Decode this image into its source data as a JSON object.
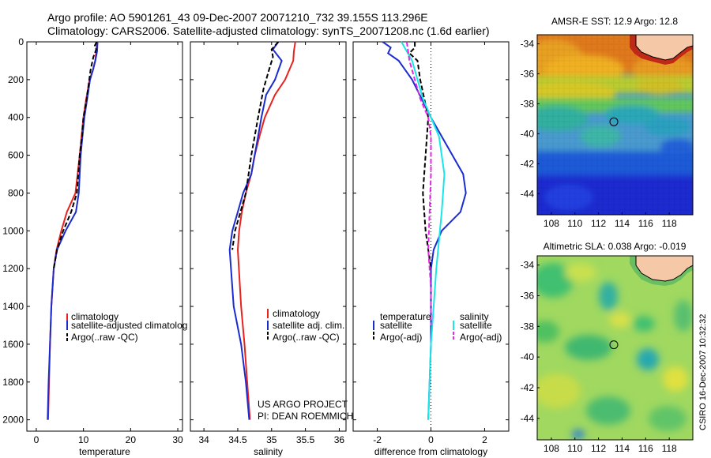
{
  "header": {
    "line1": "Argo profile: AO 5901261_43 09-Dec-2007 20071210_732 39.155S 113.296E",
    "line2": "Climatology: CARS2006. Satellite-adjusted climatology: synTS_20071208.nc (1.6d earlier)"
  },
  "footer": {
    "credit": "CSIRO 16-Dec-2007 10:32:32"
  },
  "colors": {
    "climatology": "#e8231f",
    "satellite": "#1a2ccf",
    "argo": "#000000",
    "sal_satellite": "#19e6e6",
    "sal_argo": "#e626e6"
  },
  "chart_data": [
    {
      "type": "line",
      "xlabel": "temperature",
      "xlim": [
        -2,
        31
      ],
      "ylim": [
        2060,
        0
      ],
      "xticks": [
        0,
        10,
        20,
        30
      ],
      "yticks": [
        0,
        200,
        400,
        600,
        800,
        1000,
        1200,
        1400,
        1600,
        1800,
        2000
      ],
      "series": [
        {
          "name": "climatology",
          "color": "#e8231f",
          "dash": "solid",
          "x": [
            12.8,
            12.7,
            12.5,
            12.0,
            11.3,
            10.6,
            10.0,
            9.6,
            9.2,
            8.3,
            6.5,
            5.3,
            4.3,
            3.7,
            3.2,
            2.9,
            2.7,
            2.5
          ],
          "y": [
            0,
            50,
            100,
            150,
            200,
            300,
            400,
            500,
            600,
            800,
            900,
            1000,
            1100,
            1200,
            1400,
            1600,
            1800,
            2000
          ]
        },
        {
          "name": "satellite-adjusted climatology",
          "color": "#1a2ccf",
          "dash": "solid",
          "x": [
            13.0,
            12.9,
            12.5,
            12.0,
            11.4,
            10.8,
            10.2,
            9.8,
            9.4,
            9.0,
            8.4,
            6.2,
            4.4,
            3.7,
            3.2,
            2.9,
            2.6,
            2.4
          ],
          "y": [
            0,
            50,
            100,
            150,
            200,
            300,
            400,
            500,
            600,
            800,
            900,
            1000,
            1100,
            1200,
            1400,
            1600,
            1800,
            2000
          ]
        },
        {
          "name": "Argo(..raw -QC)",
          "color": "#000000",
          "dash": "dashed",
          "x": [
            12.8,
            12.4,
            12.7,
            12.1,
            11.5,
            10.7,
            10.0,
            9.7,
            9.2,
            8.6,
            7.4,
            5.7,
            4.4,
            3.7
          ],
          "y": [
            0,
            20,
            40,
            80,
            150,
            300,
            400,
            500,
            600,
            800,
            900,
            1000,
            1100,
            1200
          ]
        }
      ],
      "legend": [
        "climatology",
        "satellite-adjusted climatolog",
        "Argo(..raw -QC)"
      ]
    },
    {
      "type": "line",
      "xlabel": "salinity",
      "xlim": [
        33.8,
        36.1
      ],
      "ylim": [
        2060,
        0
      ],
      "xticks": [
        34,
        34.5,
        35,
        35.5,
        36
      ],
      "series": [
        {
          "name": "climatology",
          "color": "#e8231f",
          "dash": "solid",
          "x": [
            35.35,
            35.33,
            35.32,
            35.2,
            35.05,
            34.9,
            34.82,
            34.75,
            34.7,
            34.62,
            34.56,
            34.52,
            34.5,
            34.55,
            34.6,
            34.64,
            34.68
          ],
          "y": [
            0,
            50,
            100,
            200,
            280,
            400,
            500,
            600,
            700,
            800,
            900,
            1000,
            1100,
            1400,
            1600,
            1800,
            2000
          ]
        },
        {
          "name": "satellite adj. clim.",
          "color": "#1a2ccf",
          "dash": "solid",
          "x": [
            35.1,
            35.02,
            35.15,
            35.05,
            34.92,
            34.85,
            34.8,
            34.75,
            34.7,
            34.58,
            34.5,
            34.42,
            34.38,
            34.44,
            34.55,
            34.62,
            34.67
          ],
          "y": [
            0,
            40,
            100,
            200,
            280,
            400,
            500,
            600,
            700,
            800,
            900,
            1000,
            1100,
            1400,
            1600,
            1800,
            2000
          ]
        },
        {
          "name": "Argo(..raw -QC)",
          "color": "#000000",
          "dash": "dashed",
          "x": [
            35.1,
            35.0,
            35.02,
            34.96,
            34.88,
            34.8,
            34.75,
            34.7,
            34.62,
            34.54,
            34.46,
            34.42
          ],
          "y": [
            0,
            40,
            80,
            150,
            250,
            400,
            500,
            600,
            800,
            900,
            1000,
            1100
          ]
        }
      ],
      "legend": [
        "climatology",
        "satellite adj. clim.",
        "Argo(..raw -QC)"
      ],
      "annotation": [
        "US ARGO PROJECT",
        "PI: DEAN ROEMMICH"
      ]
    },
    {
      "type": "line",
      "xlabel": "difference from climatology",
      "xlim": [
        -2.9,
        2.9
      ],
      "ylim": [
        2060,
        0
      ],
      "xticks": [
        -2,
        0,
        2
      ],
      "series": [
        {
          "name": "temperature satellite",
          "color": "#1a2ccf",
          "dash": "solid",
          "x": [
            -1.8,
            -1.5,
            -1.6,
            -1.2,
            -0.7,
            0.0,
            0.4,
            0.8,
            1.2,
            1.3,
            1.1,
            0.4,
            0.1,
            0.0,
            0.0,
            0.0,
            -0.05,
            -0.1
          ],
          "y": [
            0,
            30,
            60,
            100,
            200,
            400,
            500,
            600,
            700,
            800,
            900,
            1000,
            1100,
            1200,
            1400,
            1600,
            1800,
            2000
          ]
        },
        {
          "name": "temperature Argo(-adj)",
          "color": "#000000",
          "dash": "dashed",
          "x": [
            -0.6,
            -0.6,
            -0.8,
            -0.5,
            -0.4,
            -0.1,
            -0.2,
            -0.3,
            -0.2,
            0.0
          ],
          "y": [
            0,
            30,
            60,
            100,
            200,
            400,
            600,
            800,
            1000,
            1200
          ]
        },
        {
          "name": "salinity satellite",
          "color": "#19e6e6",
          "dash": "solid",
          "x": [
            -1.1,
            -0.9,
            -0.7,
            -0.5,
            -0.3,
            0.0,
            0.3,
            0.5,
            0.4,
            0.2,
            0.0,
            -0.1
          ],
          "y": [
            0,
            50,
            100,
            200,
            300,
            400,
            500,
            700,
            900,
            1200,
            1600,
            2000
          ]
        },
        {
          "name": "salinity Argo(-adj)",
          "color": "#e626e6",
          "dash": "dashed",
          "x": [
            -0.9,
            -0.8,
            -0.6,
            -0.4,
            -0.1,
            0.0,
            0.0,
            -0.05,
            -0.1,
            0.0,
            0.0
          ],
          "y": [
            0,
            100,
            200,
            300,
            400,
            500,
            700,
            900,
            1100,
            1300,
            1500
          ]
        }
      ],
      "legend": {
        "temp_title": "temperature",
        "sal_title": "salinity",
        "temp_sat": "satellite",
        "temp_argo": "Argo(-adj)",
        "sal_sat": "satellite",
        "sal_argo": "Argo(-adj)"
      }
    },
    {
      "type": "heatmap",
      "title": "AMSR-E SST: 12.9  Argo: 12.8",
      "xlim": [
        106.8,
        120
      ],
      "ylim": [
        -45.4,
        -33.4
      ],
      "xticks": [
        108,
        110,
        112,
        114,
        116,
        118
      ],
      "yticks": [
        -34,
        -36,
        -38,
        -40,
        -42,
        -44
      ],
      "argo_position": [
        113.3,
        -39.2
      ]
    },
    {
      "type": "heatmap",
      "title": "Altimetric SLA: 0.038  Argo: -0.019",
      "xlim": [
        106.8,
        120
      ],
      "ylim": [
        -45.4,
        -33.4
      ],
      "xticks": [
        108,
        110,
        112,
        114,
        116,
        118
      ],
      "yticks": [
        -34,
        -36,
        -38,
        -40,
        -42,
        -44
      ],
      "argo_position": [
        113.3,
        -39.2
      ]
    }
  ]
}
